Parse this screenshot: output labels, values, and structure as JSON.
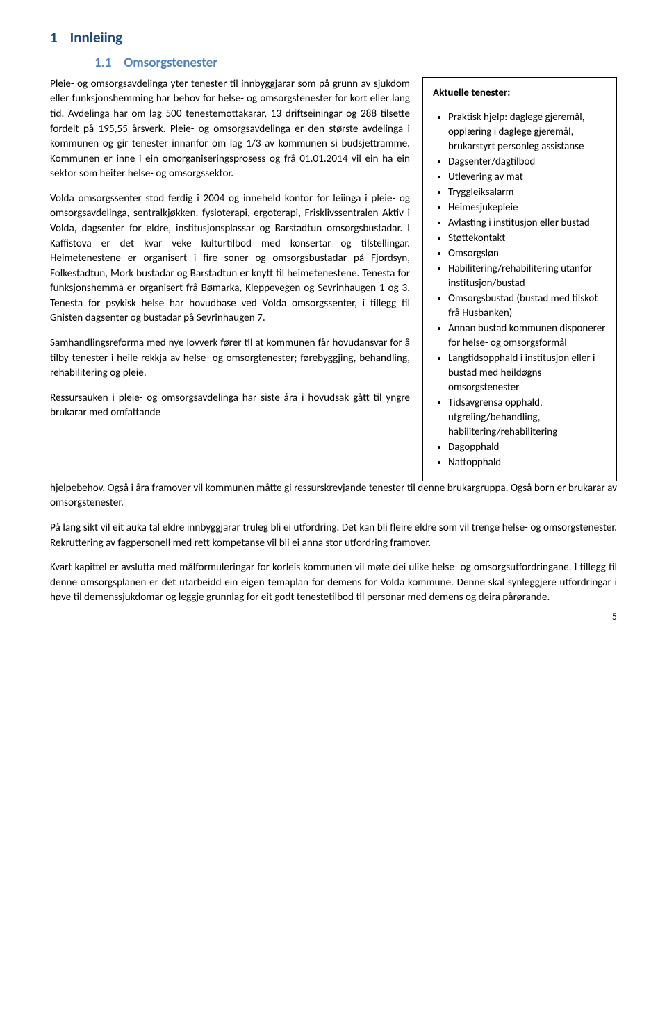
{
  "page": {
    "number": "5",
    "background_color": "#ffffff",
    "text_color": "#000000"
  },
  "fonts": {
    "body_family": "Calibri, Arial, sans-serif",
    "body_size_pt": 11,
    "h1_size_pt": 16,
    "h2_size_pt": 14,
    "line_height": 1.42
  },
  "colors": {
    "h1": "#1f497d",
    "h2": "#4f81bd",
    "border": "#000000"
  },
  "headings": {
    "h1_num": "1",
    "h1_text": "Innleiing",
    "h2_num": "1.1",
    "h2_text": "Omsorgstenester"
  },
  "body": {
    "p1": "Pleie- og omsorgsavdelinga yter tenester til innbyggjarar som på grunn av sjukdom eller funksjonshemming har behov for helse- og omsorgstenester for kort eller lang tid. Avdelinga har om lag 500 tenestemottakarar, 13 driftseiningar og 288 tilsette fordelt på 195,55 årsverk. Pleie- og omsorgsavdelinga er den største avdelinga i kommunen og gir tenester innanfor om lag 1/3 av kommunen si budsjettramme. Kommunen er inne i ein omorganiseringsprosess og frå 01.01.2014 vil ein ha ein sektor som heiter helse- og omsorgssektor.",
    "p2": "Volda omsorgssenter stod ferdig i 2004 og inneheld kontor for leiinga i pleie- og omsorgsavdelinga, sentralkjøkken, fysioterapi, ergoterapi, Frisklivssentralen Aktiv i Volda, dagsenter for eldre, institusjonsplassar og Barstadtun omsorgsbustadar. I Kaffistova er det kvar veke kulturtilbod med konsertar og tilstellingar. Heimetenestene er organisert i fire soner og omsorgsbustadar på Fjordsyn, Folkestadtun, Mork bustadar og Barstadtun er knytt til heimetenestene. Tenesta for funksjonshemma er organisert frå Bømarka, Kleppevegen og Sevrinhaugen 1 og 3. Tenesta for psykisk helse har hovudbase ved Volda omsorgssenter, i tillegg til Gnisten dagsenter og bustadar på Sevrinhaugen 7.",
    "p3": "Samhandlingsreforma med nye lovverk fører til at kommunen får hovudansvar for å tilby tenester i heile rekkja av helse- og omsorgtenester; førebyggjing, behandling, rehabilitering og pleie.",
    "p4_left": "Ressursauken i pleie- og omsorgsavdelinga har siste åra i hovudsak gått til yngre brukarar med omfattande",
    "p4_tail": "hjelpebehov. Også i åra framover vil kommunen måtte gi ressurskrevjande tenester til denne brukargruppa. Også born er brukarar av omsorgstenester.",
    "p5": "På lang sikt vil eit auka tal eldre innbyggjarar truleg bli ei utfordring. Det kan bli fleire eldre som vil trenge helse- og omsorgstenester. Rekruttering av fagpersonell med rett kompetanse vil bli ei anna stor utfordring framover.",
    "p6": "Kvart kapittel er avslutta med målformuleringar for korleis kommunen vil møte dei ulike helse- og omsorgsutfordringane. I tillegg til denne omsorgsplanen er det utarbeidd ein eigen temaplan for demens for Volda kommune. Denne skal synleggjere utfordringar i høve til demenssjukdomar og leggje grunnlag for eit godt tenestetilbod til personar med demens og deira pårørande."
  },
  "sidebar": {
    "title": "Aktuelle tenester:",
    "items": [
      "Praktisk hjelp: daglege gjeremål, opplæring i daglege gjeremål, brukarstyrt personleg assistanse",
      "Dagsenter/dagtilbod",
      "Utlevering av mat",
      "Tryggleiksalarm",
      "Heimesjukepleie",
      "Avlasting i institusjon eller bustad",
      "Støttekontakt",
      "Omsorgsløn",
      "Habilitering/rehabilitering utanfor institusjon/bustad",
      "Omsorgsbustad (bustad med tilskot frå Husbanken)",
      "Annan bustad kommunen disponerer for helse- og omsorgsformål",
      "Langtidsopphald i institusjon eller i bustad med heildøgns omsorgstenester",
      "Tidsavgrensa opphald, utgreiing/behandling, habilitering/rehabilitering",
      "Dagopphald",
      "Nattopphald"
    ]
  }
}
